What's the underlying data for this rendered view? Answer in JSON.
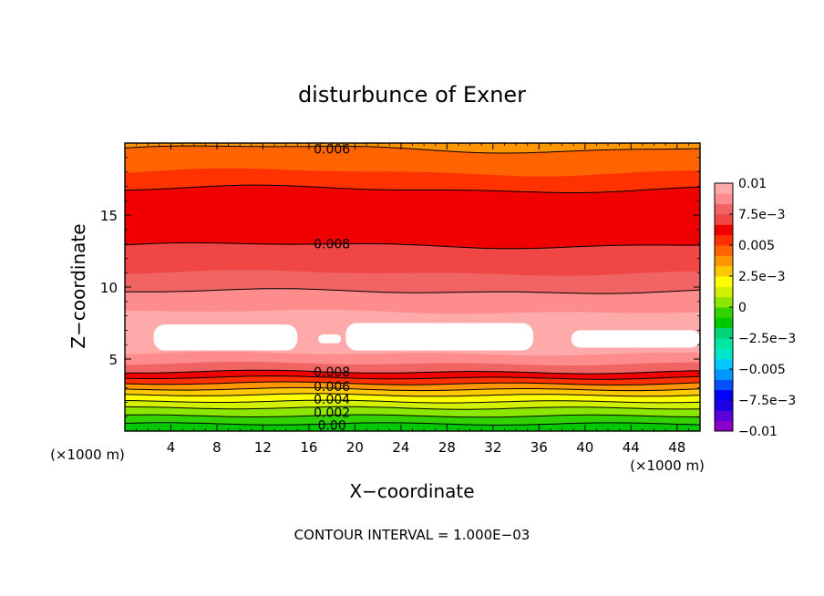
{
  "chart_data": {
    "type": "heatmap",
    "title": "disturbunce of Exner",
    "xlabel": "X−coordinate",
    "ylabel": "Z−coordinate",
    "xlim": [
      0,
      50
    ],
    "ylim": [
      0,
      20
    ],
    "x_ticks": [
      4,
      8,
      12,
      16,
      20,
      24,
      28,
      32,
      36,
      40,
      44,
      48
    ],
    "y_ticks": [
      5,
      10,
      15
    ],
    "x_unit": "(×1000 m)",
    "y_unit": "(×1000 m)",
    "footer": "CONTOUR INTERVAL = 1.000E−03",
    "colorbar": {
      "range": [
        -0.01,
        0.01
      ],
      "labels": [
        {
          "value": 0.01,
          "text": "0.01"
        },
        {
          "value": 0.0075,
          "text": "7.5e−3"
        },
        {
          "value": 0.005,
          "text": "0.005"
        },
        {
          "value": 0.0025,
          "text": "2.5e−3"
        },
        {
          "value": 0,
          "text": "0"
        },
        {
          "value": -0.0025,
          "text": "−2.5e−3"
        },
        {
          "value": -0.005,
          "text": "−0.005"
        },
        {
          "value": -0.0075,
          "text": "−7.5e−3"
        },
        {
          "value": -0.01,
          "text": "−0.01"
        }
      ],
      "colors": [
        "#8a00c8",
        "#5a00d8",
        "#1e00e6",
        "#0000ff",
        "#0050ff",
        "#0096ff",
        "#00c8ff",
        "#00e6c8",
        "#00e6a0",
        "#00d278",
        "#00c800",
        "#32d200",
        "#8ce600",
        "#d2f000",
        "#ffff00",
        "#ffc800",
        "#ff9600",
        "#ff6400",
        "#ff3200",
        "#f00000",
        "#f04646",
        "#f06464",
        "#ff8c8c",
        "#ffaaaa"
      ]
    },
    "contour_labels": [
      {
        "x": 18,
        "z": 19.6,
        "text": "0.006"
      },
      {
        "x": 18,
        "z": 13.0,
        "text": "0.008"
      },
      {
        "x": 18,
        "z": 4.1,
        "text": "0.008"
      },
      {
        "x": 18,
        "z": 3.1,
        "text": "0.006"
      },
      {
        "x": 18,
        "z": 2.2,
        "text": "0.004"
      },
      {
        "x": 18,
        "z": 1.3,
        "text": "0.002"
      },
      {
        "x": 18,
        "z": 0.4,
        "text": "0.00"
      }
    ],
    "bands": [
      {
        "z0": 0.0,
        "z1": 0.55,
        "value": 0.0,
        "color": "#00c800"
      },
      {
        "z0": 0.55,
        "z1": 1.05,
        "value": 0.001,
        "color": "#32d200"
      },
      {
        "z0": 1.05,
        "z1": 1.6,
        "value": 0.002,
        "color": "#8ce600"
      },
      {
        "z0": 1.6,
        "z1": 2.05,
        "value": 0.003,
        "color": "#d2f000"
      },
      {
        "z0": 2.05,
        "z1": 2.5,
        "value": 0.004,
        "color": "#ffff00"
      },
      {
        "z0": 2.5,
        "z1": 2.9,
        "value": 0.005,
        "color": "#ffc800"
      },
      {
        "z0": 2.9,
        "z1": 3.3,
        "value": 0.006,
        "color": "#ff9600"
      },
      {
        "z0": 3.3,
        "z1": 3.7,
        "value": 0.007,
        "color": "#ff3200"
      },
      {
        "z0": 3.7,
        "z1": 4.1,
        "value": 0.008,
        "color": "#f00000"
      },
      {
        "z0": 4.1,
        "z1": 4.7,
        "value": 0.009,
        "color": "#f06464"
      },
      {
        "z0": 4.7,
        "z1": 5.4,
        "value": 0.0093,
        "color": "#ff8c8c"
      },
      {
        "z0": 5.4,
        "z1": 8.3,
        "value": 0.01,
        "color": "#ffaaaa"
      },
      {
        "z0": 8.3,
        "z1": 9.7,
        "value": 0.0095,
        "color": "#ff8c8c"
      },
      {
        "z0": 9.7,
        "z1": 11.0,
        "value": 0.009,
        "color": "#f06464"
      },
      {
        "z0": 11.0,
        "z1": 12.9,
        "value": 0.0085,
        "color": "#f04646"
      },
      {
        "z0": 12.9,
        "z1": 16.8,
        "value": 0.008,
        "color": "#f00000"
      },
      {
        "z0": 16.8,
        "z1": 18.0,
        "value": 0.007,
        "color": "#ff3200"
      },
      {
        "z0": 18.0,
        "z1": 19.6,
        "value": 0.0065,
        "color": "#ff6400"
      },
      {
        "z0": 19.6,
        "z1": 20.0,
        "value": 0.006,
        "color": "#ff9600"
      }
    ],
    "white_regions": [
      {
        "x0": 2.5,
        "x1": 15.0,
        "z0": 5.6,
        "z1": 7.4
      },
      {
        "x0": 16.8,
        "x1": 18.8,
        "z0": 6.1,
        "z1": 6.7
      },
      {
        "x0": 19.2,
        "x1": 35.5,
        "z0": 5.6,
        "z1": 7.5
      },
      {
        "x0": 38.8,
        "x1": 50.0,
        "z0": 5.8,
        "z1": 7.0
      }
    ],
    "contour_lines": [
      {
        "z": 0.5
      },
      {
        "z": 1.05
      },
      {
        "z": 1.6
      },
      {
        "z": 2.05
      },
      {
        "z": 2.5
      },
      {
        "z": 2.9
      },
      {
        "z": 3.3
      },
      {
        "z": 3.7
      },
      {
        "z": 4.1
      },
      {
        "z": 9.7
      },
      {
        "z": 12.9
      },
      {
        "z": 16.8
      },
      {
        "z": 19.6
      }
    ]
  }
}
